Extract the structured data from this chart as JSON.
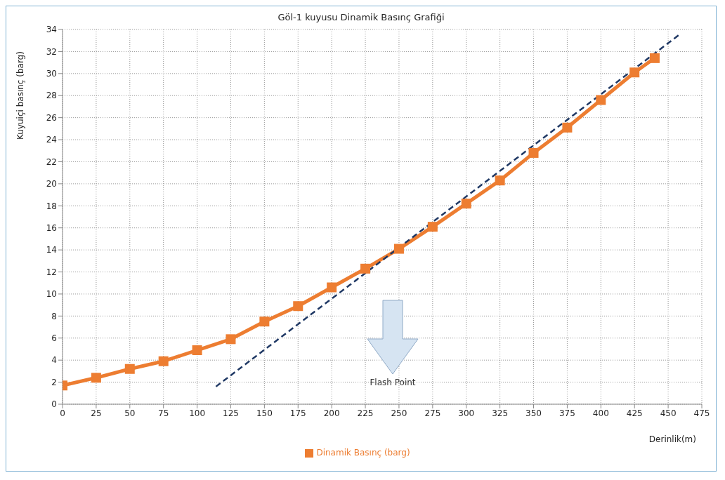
{
  "chart_data": {
    "type": "line",
    "title": "Göl-1 kuyusu Dinamik Basınç Grafiği",
    "xlabel": "Derinlik(m)",
    "ylabel": "Kuyuiçi basınç (barg)",
    "xlim": [
      0,
      475
    ],
    "xticks": [
      0,
      25,
      50,
      75,
      100,
      125,
      150,
      175,
      200,
      225,
      250,
      275,
      300,
      325,
      350,
      375,
      400,
      425,
      450,
      475
    ],
    "ylim": [
      0,
      34
    ],
    "yticks": [
      0,
      2,
      4,
      6,
      8,
      10,
      12,
      14,
      16,
      18,
      20,
      22,
      24,
      26,
      28,
      30,
      32,
      34
    ],
    "grid": true,
    "legend": "bottom",
    "marker": "square",
    "series": [
      {
        "name": "Dinamik Basınç (barg)",
        "color": "#ed7d31",
        "x": [
          0,
          25,
          50,
          75,
          100,
          125,
          150,
          175,
          200,
          225,
          250,
          275,
          300,
          325,
          350,
          375,
          400,
          425,
          440
        ],
        "values": [
          1.7,
          2.4,
          3.2,
          3.9,
          4.9,
          5.9,
          7.5,
          8.9,
          10.6,
          12.3,
          14.1,
          16.1,
          18.2,
          20.3,
          22.8,
          25.1,
          27.6,
          30.1,
          31.4
        ]
      },
      {
        "type": "line",
        "color": "#1f3864",
        "line_style": "dashed",
        "marker": "none",
        "x": [
          114,
          458
        ],
        "values": [
          1.6,
          33.5
        ]
      }
    ],
    "annotations": [
      "Flash Point"
    ]
  }
}
